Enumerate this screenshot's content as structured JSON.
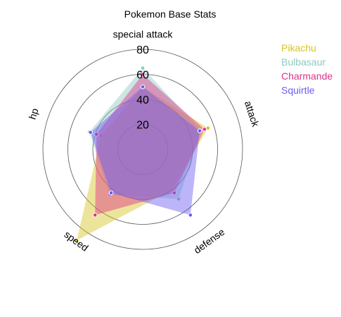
{
  "chart_data": {
    "type": "radar",
    "title": "Pokemon Base Stats",
    "axes": [
      "attack",
      "defense",
      "speed",
      "hp",
      "special attack"
    ],
    "r_ticks": [
      20,
      40,
      60,
      80
    ],
    "r_max": 80,
    "grid": true,
    "legend_position": "top-right",
    "series": [
      {
        "name": "Pikachu",
        "color": "#d4c41e",
        "values": [
          55,
          40,
          90,
          35,
          50
        ]
      },
      {
        "name": "Bulbasaur",
        "color": "#8fc9c0",
        "values": [
          49,
          49,
          45,
          45,
          65
        ]
      },
      {
        "name": "Charmande",
        "color": "#e0338a",
        "values": [
          52,
          43,
          65,
          39,
          60
        ]
      },
      {
        "name": "Squirtle",
        "color": "#6a5cf2",
        "values": [
          48,
          65,
          43,
          44,
          50
        ]
      }
    ]
  }
}
